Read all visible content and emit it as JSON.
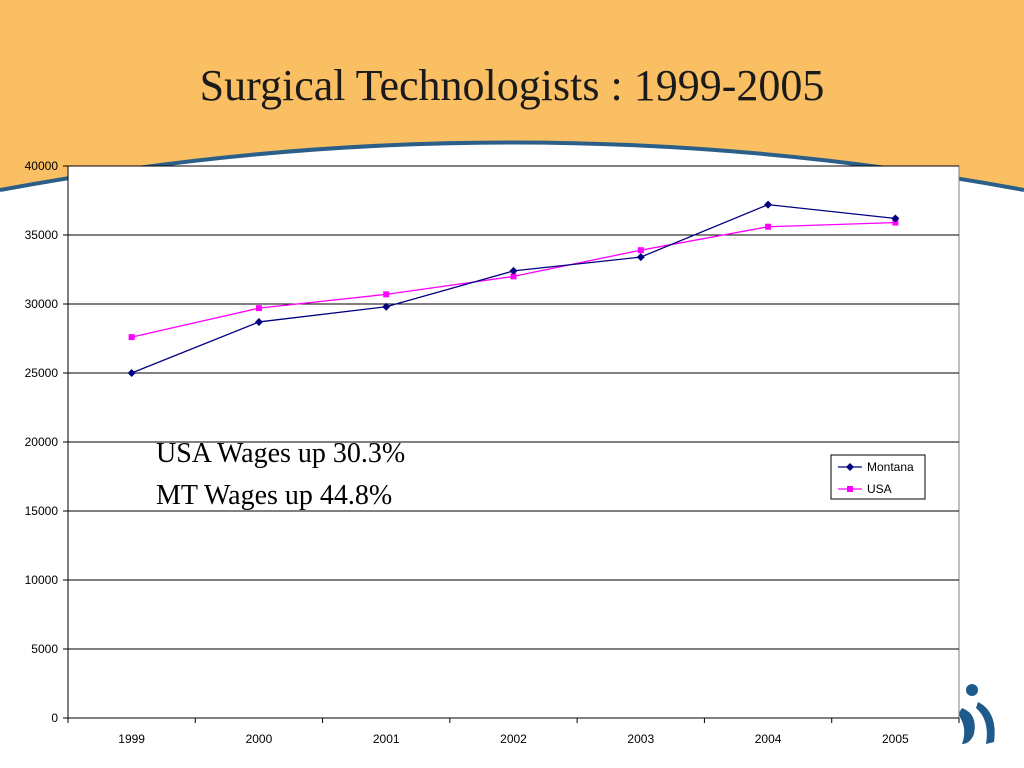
{
  "slide": {
    "title": "Surgical Technologists : 1999-2005",
    "colors": {
      "header_bg": "#fbbf63",
      "arc_stroke": "#2b5f8a",
      "logo": "#1f5a8c"
    },
    "logo_icon": "person-figure-logo-icon"
  },
  "annotations": [
    "USA Wages up 30.3%",
    "MT Wages up 44.8%"
  ],
  "chart_data": {
    "type": "line",
    "title": "",
    "xlabel": "",
    "ylabel": "",
    "categories": [
      "1999",
      "2000",
      "2001",
      "2002",
      "2003",
      "2004",
      "2005"
    ],
    "ylim": [
      0,
      40000
    ],
    "yticks": [
      0,
      5000,
      10000,
      15000,
      20000,
      25000,
      30000,
      35000,
      40000
    ],
    "grid": true,
    "legend_position": "right",
    "series": [
      {
        "name": "Montana",
        "color": "#000080",
        "marker": "diamond",
        "values": [
          25000,
          28700,
          29800,
          32400,
          33400,
          37200,
          36200
        ]
      },
      {
        "name": "USA",
        "color": "#ff00ff",
        "marker": "square",
        "values": [
          27600,
          29700,
          30700,
          32000,
          33900,
          35600,
          35900
        ]
      }
    ]
  }
}
